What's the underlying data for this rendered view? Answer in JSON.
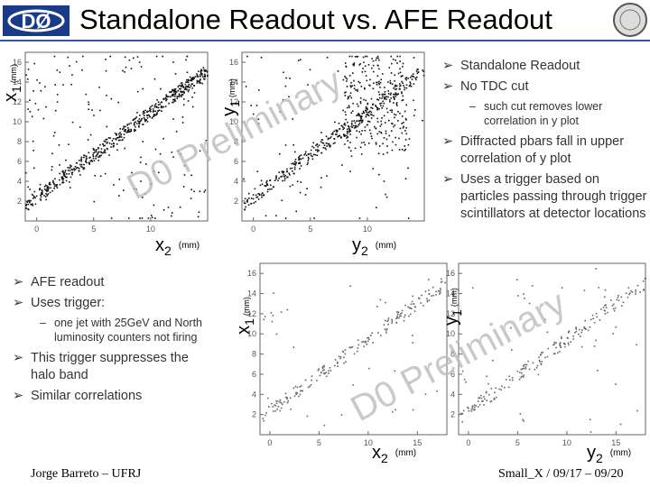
{
  "header": {
    "title": "Standalone Readout vs. AFE Readout"
  },
  "footer": {
    "left": "Jorge Barreto – UFRJ",
    "right": "Small_X / 09/17 – 09/20"
  },
  "right_bullets": [
    {
      "level": 1,
      "text": "Standalone Readout"
    },
    {
      "level": 1,
      "text": "No TDC cut"
    },
    {
      "level": 2,
      "text": "such cut removes lower correlation in y plot"
    },
    {
      "level": 1,
      "text": "Diffracted pbars fall in upper correlation of y plot"
    },
    {
      "level": 1,
      "text": "Uses a trigger based on particles passing through trigger scintillators at detector locations"
    }
  ],
  "left_bullets": [
    {
      "level": 1,
      "text": "AFE readout"
    },
    {
      "level": 1,
      "text": "Uses trigger:"
    },
    {
      "level": 2,
      "text": "one jet with 25GeV and North luminosity counters not firing"
    },
    {
      "level": 1,
      "text": "This trigger suppresses the halo band"
    },
    {
      "level": 1,
      "text": "Similar correlations"
    }
  ],
  "watermarks": [
    "D0 Preliminary",
    "D0 Preliminary"
  ],
  "plots": [
    {
      "xlabel": {
        "var": "x",
        "sub": "2",
        "unit": "(mm)"
      },
      "ylabel": {
        "var": "x",
        "sub": "1",
        "unit": "(mm)"
      },
      "xlim": [
        -1,
        15
      ],
      "ylim": [
        0,
        17
      ],
      "xticks": [
        0,
        5,
        10
      ],
      "yticks": [
        2,
        4,
        6,
        8,
        10,
        12,
        14,
        16
      ]
    },
    {
      "xlabel": {
        "var": "y",
        "sub": "2",
        "unit": "(mm)"
      },
      "ylabel": {
        "var": "y",
        "sub": "1",
        "unit": "(mm)"
      },
      "xlim": [
        -1,
        15
      ],
      "ylim": [
        0,
        17
      ],
      "xticks": [
        0,
        5,
        10
      ],
      "yticks": [
        2,
        4,
        6,
        8,
        10,
        12,
        14,
        16
      ]
    },
    {
      "xlabel": {
        "var": "x",
        "sub": "2",
        "unit": "(mm)"
      },
      "ylabel": {
        "var": "x",
        "sub": "1",
        "unit": "(mm)"
      },
      "xlim": [
        -1,
        18
      ],
      "ylim": [
        0,
        17
      ],
      "xticks": [
        0,
        5,
        10,
        15
      ],
      "yticks": [
        2,
        4,
        6,
        8,
        10,
        12,
        14,
        16
      ]
    },
    {
      "xlabel": {
        "var": "y",
        "sub": "2",
        "unit": "(mm)"
      },
      "ylabel": {
        "var": "y",
        "sub": "1",
        "unit": "(mm)"
      },
      "xlim": [
        -1,
        18
      ],
      "ylim": [
        0,
        17
      ],
      "xticks": [
        0,
        5,
        10,
        15
      ],
      "yticks": [
        2,
        4,
        6,
        8,
        10,
        12,
        14,
        16
      ]
    }
  ]
}
